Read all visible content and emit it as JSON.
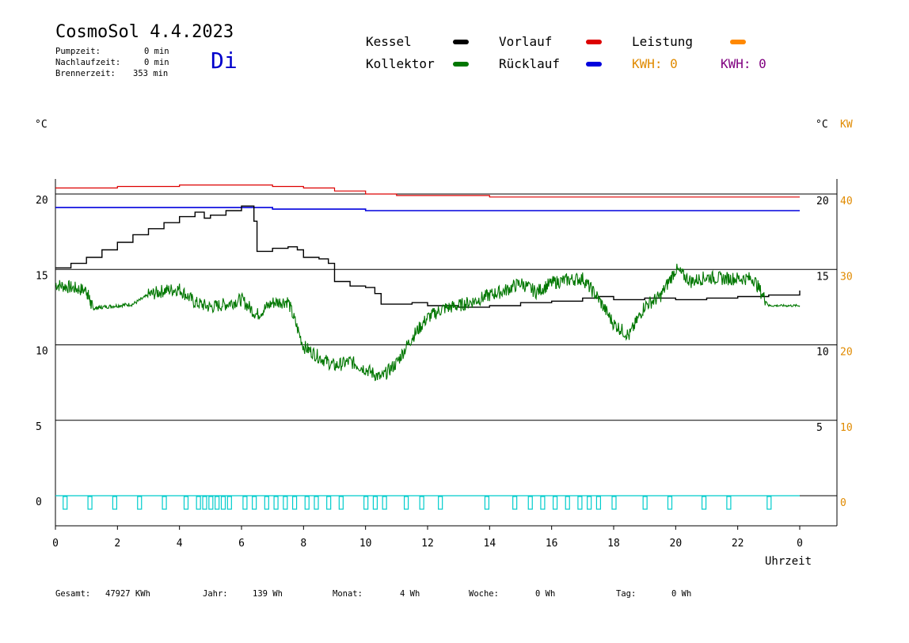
{
  "header": {
    "title": "CosmoSol 4.4.2023",
    "day": "Di",
    "pumpzeit_label": "Pumpzeit:",
    "pumpzeit_value": "0 min",
    "nachlauf_label": "Nachlaufzeit:",
    "nachlauf_value": "0 min",
    "brenner_label": "Brennerzeit:",
    "brenner_value": "353 min"
  },
  "legend": {
    "kessel": "Kessel",
    "kollektor": "Kollektor",
    "vorlauf": "Vorlauf",
    "ruecklauf": "Rücklauf",
    "leistung": "Leistung",
    "kwh_orange": "KWH: 0",
    "kwh_purple": "KWH: 0"
  },
  "axis_units": {
    "left": "°C",
    "right_temp": "°C",
    "right_power": "KW"
  },
  "footer": {
    "gesamt_label": "Gesamt:",
    "gesamt_value": "47927 KWh",
    "jahr_label": "Jahr:",
    "jahr_value": "139 Wh",
    "monat_label": "Monat:",
    "monat_value": "4 Wh",
    "woche_label": "Woche:",
    "woche_value": "0 Wh",
    "tag_label": "Tag:",
    "tag_value": "0 Wh"
  },
  "colors": {
    "kessel": "#000000",
    "kollektor": "#007700",
    "vorlauf": "#dd0000",
    "ruecklauf": "#0000dd",
    "leistung": "#ff8800",
    "kwh_purple": "#800080",
    "pump": "#00cccc",
    "power_axis": "#e08a00",
    "day": "#0000cc"
  },
  "chart_data": {
    "type": "line",
    "title": "CosmoSol 4.4.2023",
    "xlabel": "Uhrzeit",
    "ylabel": "°C",
    "y2label": "KW",
    "xlim": [
      0,
      24
    ],
    "ylim": [
      -1.5,
      21.5
    ],
    "x_ticks": [
      "0",
      "2",
      "4",
      "6",
      "8",
      "10",
      "12",
      "14",
      "16",
      "18",
      "20",
      "22",
      "0"
    ],
    "y_ticks_left": [
      "0",
      "5",
      "10",
      "15",
      "20"
    ],
    "y_ticks_right_temp": [
      "5",
      "10",
      "15",
      "20"
    ],
    "y_ticks_right_power": [
      "0",
      "10",
      "20",
      "30",
      "40"
    ],
    "gridlines_y": [
      0,
      5,
      10,
      15,
      20
    ],
    "legend_position": "top",
    "series": [
      {
        "name": "Kessel",
        "color": "#000000",
        "x": [
          0,
          0.5,
          1,
          1.5,
          2,
          2.5,
          3,
          3.5,
          4,
          4.5,
          4.6,
          4.8,
          5,
          5.5,
          6,
          6.2,
          6.3,
          6.4,
          6.5,
          7,
          7.5,
          7.8,
          8,
          8.5,
          8.8,
          9,
          9.5,
          10,
          10.3,
          10.5,
          11,
          11.5,
          12,
          13,
          14,
          15,
          16,
          17,
          17.5,
          18,
          19,
          20,
          21,
          22,
          23,
          24
        ],
        "y": [
          15.1,
          15.4,
          15.8,
          16.3,
          16.8,
          17.3,
          17.7,
          18.1,
          18.5,
          18.8,
          18.8,
          18.4,
          18.6,
          18.9,
          19.2,
          19.2,
          19.2,
          18.2,
          16.2,
          16.4,
          16.5,
          16.3,
          15.8,
          15.7,
          15.4,
          14.2,
          13.9,
          13.8,
          13.4,
          12.7,
          12.7,
          12.8,
          12.6,
          12.5,
          12.6,
          12.8,
          12.9,
          13.1,
          13.2,
          13.0,
          13.1,
          13.0,
          13.1,
          13.2,
          13.3,
          13.6
        ]
      },
      {
        "name": "Kollektor",
        "color": "#007700",
        "x": [
          0,
          0.5,
          1,
          1.2,
          1.5,
          2,
          2.5,
          3,
          3.5,
          4,
          4.5,
          5,
          5.5,
          6,
          6.5,
          7,
          7.5,
          8,
          8.5,
          9,
          9.5,
          10,
          10.5,
          11,
          11.5,
          12,
          12.5,
          13,
          13.5,
          14,
          14.5,
          15,
          15.5,
          16,
          16.5,
          17,
          17.5,
          18,
          18.5,
          19,
          19.5,
          20,
          20.5,
          21,
          21.5,
          22,
          22.5,
          23,
          23.5,
          24
        ],
        "y": [
          14.0,
          13.8,
          13.6,
          12.4,
          12.5,
          12.6,
          12.7,
          13.3,
          13.6,
          13.7,
          12.8,
          12.5,
          12.7,
          13.0,
          12.0,
          12.8,
          12.9,
          9.9,
          9.2,
          8.6,
          8.9,
          8.4,
          7.8,
          8.8,
          10.5,
          11.8,
          12.4,
          12.6,
          12.9,
          13.3,
          13.6,
          14.1,
          13.5,
          14.1,
          14.3,
          14.4,
          13.1,
          11.4,
          10.6,
          12.6,
          13.2,
          15.0,
          14.2,
          14.5,
          14.4,
          14.4,
          14.4,
          12.6,
          12.6,
          12.6
        ]
      },
      {
        "name": "Vorlauf",
        "color": "#dd0000",
        "x": [
          0,
          2,
          4,
          6,
          7,
          8,
          9,
          10,
          11,
          12,
          14,
          16,
          18,
          20,
          22,
          24
        ],
        "y": [
          20.4,
          20.5,
          20.6,
          20.6,
          20.5,
          20.4,
          20.2,
          20.0,
          19.9,
          19.9,
          19.8,
          19.8,
          19.8,
          19.8,
          19.8,
          19.8
        ]
      },
      {
        "name": "Rücklauf",
        "color": "#0000dd",
        "x": [
          0,
          2,
          4,
          6,
          7,
          8,
          10,
          12,
          14,
          16,
          18,
          20,
          22,
          24
        ],
        "y": [
          19.1,
          19.1,
          19.1,
          19.1,
          19.0,
          19.0,
          18.9,
          18.9,
          18.9,
          18.9,
          18.9,
          18.9,
          18.9,
          18.9
        ]
      },
      {
        "name": "Leistung",
        "color": "#ff8800",
        "x": [],
        "y": []
      }
    ],
    "pump_runs_hours": [
      0.3,
      1.1,
      1.9,
      2.7,
      3.5,
      4.2,
      4.6,
      4.8,
      5.0,
      5.2,
      5.4,
      5.6,
      6.1,
      6.4,
      6.8,
      7.1,
      7.4,
      7.7,
      8.1,
      8.4,
      8.8,
      9.2,
      10.0,
      10.3,
      10.6,
      11.3,
      11.8,
      12.4,
      13.9,
      14.8,
      15.3,
      15.7,
      16.1,
      16.5,
      16.9,
      17.2,
      17.5,
      18.0,
      19.0,
      19.8,
      20.9,
      21.7,
      23.0
    ]
  }
}
